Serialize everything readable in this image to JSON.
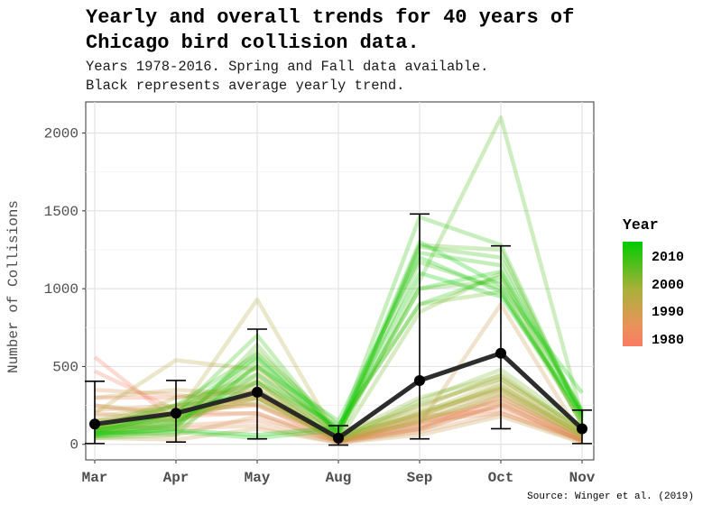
{
  "chart_data": {
    "type": "line",
    "title": "Yearly and overall trends for 40 years of\nChicago bird collision data.",
    "subtitle": "Years 1978-2016. Spring and Fall data available.\nBlack represents average yearly trend.",
    "caption": "Source: Winger et al. (2019)",
    "xlabel": "",
    "ylabel": "Number of Collisions",
    "categories": [
      "Mar",
      "Apr",
      "May",
      "Aug",
      "Sep",
      "Oct",
      "Nov"
    ],
    "ylim": [
      -100,
      2200
    ],
    "yticks": [
      0,
      500,
      1000,
      1500,
      2000
    ],
    "grid": true,
    "average": {
      "name": "average yearly trend",
      "values": [
        130,
        200,
        335,
        40,
        410,
        585,
        100
      ],
      "error_low": [
        5,
        15,
        35,
        -5,
        35,
        100,
        5
      ],
      "error_high": [
        405,
        410,
        740,
        120,
        1480,
        1275,
        220
      ],
      "color": "#222222"
    },
    "year_range": [
      1978,
      2016
    ],
    "legend": {
      "title": "Year",
      "placement": "right",
      "labels": [
        2010,
        2000,
        1990,
        1980
      ],
      "colors": {
        "low": "#f87c62",
        "mid": "#a8b13a",
        "high": "#00cc00"
      }
    },
    "series": [
      {
        "year": 1978,
        "values": [
          560,
          150,
          300,
          20,
          120,
          250,
          20
        ]
      },
      {
        "year": 1979,
        "values": [
          470,
          220,
          250,
          30,
          140,
          280,
          30
        ]
      },
      {
        "year": 1980,
        "values": [
          300,
          300,
          350,
          15,
          180,
          220,
          25
        ]
      },
      {
        "year": 1981,
        "values": [
          250,
          180,
          200,
          10,
          100,
          300,
          40
        ]
      },
      {
        "year": 1982,
        "values": [
          100,
          120,
          150,
          20,
          90,
          260,
          20
        ]
      },
      {
        "year": 1983,
        "values": [
          200,
          150,
          330,
          15,
          150,
          200,
          30
        ]
      },
      {
        "year": 1984,
        "values": [
          150,
          200,
          200,
          25,
          110,
          310,
          35
        ]
      },
      {
        "year": 1985,
        "values": [
          350,
          320,
          250,
          20,
          200,
          350,
          40
        ]
      },
      {
        "year": 1986,
        "values": [
          120,
          100,
          120,
          10,
          80,
          200,
          15
        ]
      },
      {
        "year": 1987,
        "values": [
          80,
          60,
          180,
          20,
          100,
          250,
          20
        ]
      },
      {
        "year": 1988,
        "values": [
          220,
          250,
          300,
          30,
          130,
          900,
          50
        ]
      },
      {
        "year": 1989,
        "values": [
          40,
          30,
          100,
          10,
          60,
          180,
          10
        ]
      },
      {
        "year": 1990,
        "values": [
          180,
          240,
          400,
          20,
          250,
          420,
          80
        ]
      },
      {
        "year": 1991,
        "values": [
          300,
          350,
          320,
          30,
          160,
          280,
          40
        ]
      },
      {
        "year": 1992,
        "values": [
          250,
          200,
          260,
          40,
          140,
          330,
          50
        ]
      },
      {
        "year": 1993,
        "values": [
          200,
          540,
          480,
          60,
          180,
          380,
          60
        ]
      },
      {
        "year": 1994,
        "values": [
          150,
          180,
          930,
          30,
          170,
          350,
          70
        ]
      },
      {
        "year": 1995,
        "values": [
          120,
          150,
          350,
          40,
          200,
          400,
          60
        ]
      },
      {
        "year": 1996,
        "values": [
          100,
          250,
          300,
          20,
          150,
          320,
          50
        ]
      },
      {
        "year": 1997,
        "values": [
          90,
          300,
          380,
          80,
          230,
          450,
          80
        ]
      },
      {
        "year": 1998,
        "values": [
          80,
          200,
          300,
          60,
          190,
          370,
          70
        ]
      },
      {
        "year": 1999,
        "values": [
          60,
          180,
          280,
          40,
          210,
          360,
          60
        ]
      },
      {
        "year": 2000,
        "values": [
          130,
          220,
          420,
          50,
          300,
          440,
          90
        ]
      },
      {
        "year": 2001,
        "values": [
          100,
          200,
          350,
          40,
          260,
          420,
          100
        ]
      },
      {
        "year": 2002,
        "values": [
          150,
          250,
          450,
          30,
          280,
          480,
          110
        ]
      },
      {
        "year": 2003,
        "values": [
          50,
          100,
          400,
          20,
          850,
          1100,
          120
        ]
      },
      {
        "year": 2004,
        "values": [
          70,
          130,
          600,
          120,
          900,
          980,
          140
        ]
      },
      {
        "year": 2005,
        "values": [
          90,
          180,
          500,
          80,
          1000,
          1050,
          130
        ]
      },
      {
        "year": 2006,
        "values": [
          60,
          100,
          640,
          60,
          1280,
          1250,
          160
        ]
      },
      {
        "year": 2007,
        "values": [
          40,
          60,
          520,
          40,
          1050,
          2100,
          180
        ]
      },
      {
        "year": 2008,
        "values": [
          80,
          150,
          550,
          70,
          1170,
          1000,
          150
        ]
      },
      {
        "year": 2009,
        "values": [
          100,
          200,
          700,
          50,
          1270,
          1200,
          200
        ]
      },
      {
        "year": 2010,
        "values": [
          110,
          250,
          580,
          90,
          1460,
          1280,
          170
        ]
      },
      {
        "year": 2011,
        "values": [
          70,
          130,
          450,
          100,
          1230,
          1150,
          190
        ]
      },
      {
        "year": 2012,
        "values": [
          90,
          160,
          400,
          120,
          900,
          1080,
          210
        ]
      },
      {
        "year": 2013,
        "values": [
          50,
          80,
          40,
          90,
          1000,
          1110,
          220
        ]
      },
      {
        "year": 2014,
        "values": [
          60,
          120,
          500,
          150,
          1200,
          980,
          180
        ]
      },
      {
        "year": 2015,
        "values": [
          80,
          200,
          560,
          80,
          1300,
          1020,
          330
        ]
      },
      {
        "year": 2016,
        "values": [
          70,
          90,
          60,
          110,
          1100,
          950,
          200
        ]
      }
    ]
  }
}
